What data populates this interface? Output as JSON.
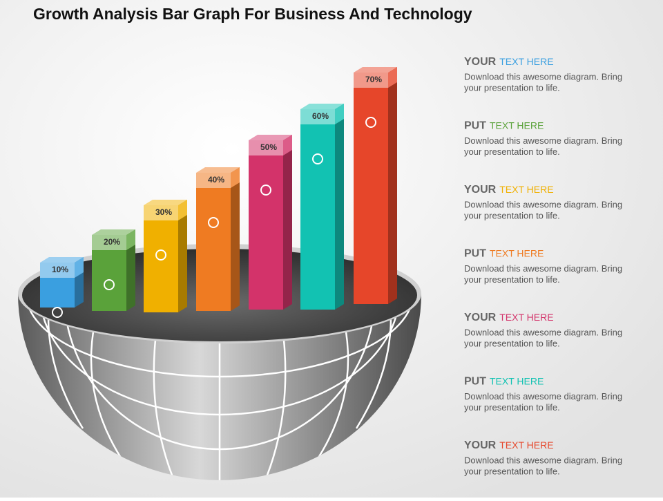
{
  "chart_data": {
    "type": "bar",
    "title": "Growth Analysis Bar Graph For Business And Technology",
    "categories": [
      null,
      null,
      null,
      null,
      null,
      null,
      null
    ],
    "values": [
      10,
      20,
      30,
      40,
      50,
      60,
      70
    ],
    "value_labels": [
      "10%",
      "20%",
      "30%",
      "40%",
      "50%",
      "60%",
      "70%"
    ],
    "colors": [
      "#3a9fe0",
      "#5aa23a",
      "#f0b000",
      "#ef7b22",
      "#d3336a",
      "#12c2b2",
      "#e6462a"
    ]
  },
  "items": [
    {
      "lead": "YOUR",
      "accent": "TEXT HERE",
      "color": "#3a9fe0",
      "body": [
        "Download this awesome diagram. Bring",
        "your presentation to life."
      ]
    },
    {
      "lead": "PUT",
      "accent": "TEXT HERE",
      "color": "#5aa23a",
      "body": [
        "Download this awesome diagram. Bring",
        "your presentation to life."
      ]
    },
    {
      "lead": "YOUR",
      "accent": "TEXT HERE",
      "color": "#f0b000",
      "body": [
        "Download this awesome diagram. Bring",
        "your presentation to life."
      ]
    },
    {
      "lead": "PUT",
      "accent": "TEXT HERE",
      "color": "#ef7b22",
      "body": [
        "Download this awesome diagram. Bring",
        "your presentation to life."
      ]
    },
    {
      "lead": "YOUR",
      "accent": "TEXT HERE",
      "color": "#d3336a",
      "body": [
        "Download this awesome diagram. Bring",
        "your presentation to life."
      ]
    },
    {
      "lead": "PUT",
      "accent": "TEXT HERE",
      "color": "#12c2b2",
      "body": [
        "Download this awesome diagram. Bring",
        "your presentation to life."
      ]
    },
    {
      "lead": "YOUR",
      "accent": "TEXT HERE",
      "color": "#e6462a",
      "body": [
        "Download this awesome diagram. Bring",
        "your presentation to life."
      ]
    }
  ]
}
